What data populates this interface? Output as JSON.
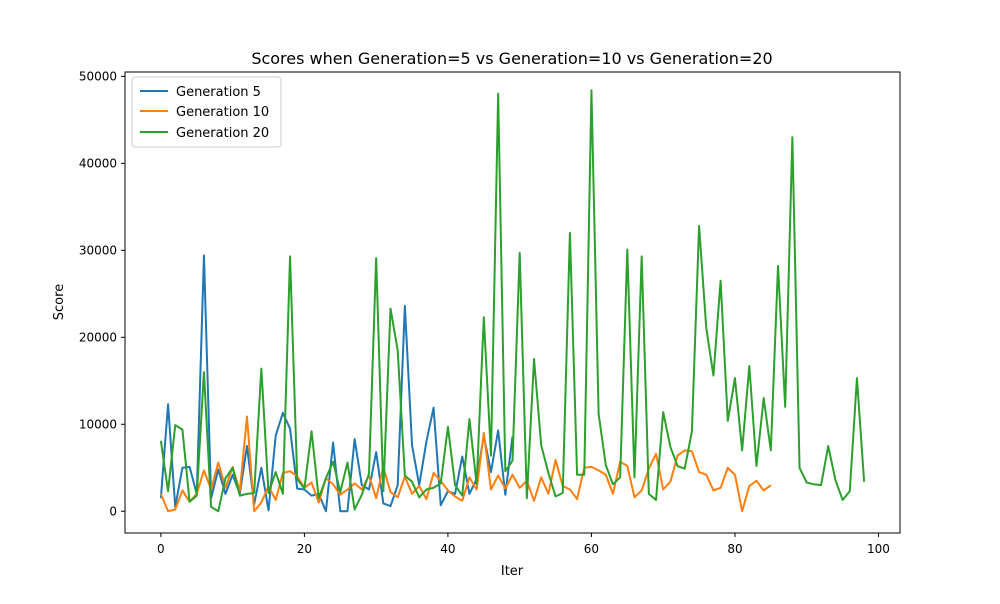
{
  "chart_data": {
    "type": "line",
    "title": "Scores when Generation=5 vs Generation=10 vs Generation=20",
    "xlabel": "Iter",
    "ylabel": "Score",
    "xlim": [
      -5,
      103
    ],
    "ylim": [
      -2500,
      50500
    ],
    "x_ticks": [
      0,
      20,
      40,
      60,
      80,
      100
    ],
    "y_ticks": [
      0,
      10000,
      20000,
      30000,
      40000,
      50000
    ],
    "x_tick_labels": [
      "0",
      "20",
      "40",
      "60",
      "80",
      "100"
    ],
    "y_tick_labels": [
      "0",
      "10000",
      "20000",
      "30000",
      "40000",
      "50000"
    ],
    "grid": false,
    "legend_position": "upper-left",
    "series": [
      {
        "name": "Generation 5",
        "color": "#1f77b4",
        "x": [
          0,
          1,
          2,
          3,
          4,
          5,
          6,
          7,
          8,
          9,
          10,
          11,
          12,
          13,
          14,
          15,
          16,
          17,
          18,
          19,
          20,
          21,
          22,
          23,
          24,
          25,
          26,
          27,
          28,
          29,
          30,
          31,
          32,
          33,
          34,
          35,
          36,
          37,
          38,
          39,
          40,
          41,
          42,
          43,
          44,
          45,
          46,
          47,
          48,
          49
        ],
        "values": [
          1500,
          12300,
          500,
          5000,
          5100,
          2000,
          29400,
          1500,
          4800,
          2000,
          4200,
          2000,
          7500,
          800,
          5000,
          100,
          8700,
          11300,
          9500,
          2600,
          2500,
          1800,
          2000,
          0,
          7900,
          0,
          0,
          8300,
          3000,
          2500,
          6800,
          900,
          600,
          3000,
          23600,
          7600,
          3000,
          8000,
          11900,
          700,
          2300,
          2000,
          6300,
          2000,
          3700,
          8700,
          4500,
          9300,
          1900,
          8600
        ]
      },
      {
        "name": "Generation 10",
        "color": "#ff7f0e",
        "x": [
          0,
          1,
          2,
          3,
          4,
          5,
          6,
          7,
          8,
          9,
          10,
          11,
          12,
          13,
          14,
          15,
          16,
          17,
          18,
          19,
          20,
          21,
          22,
          23,
          24,
          25,
          26,
          27,
          28,
          29,
          30,
          31,
          32,
          33,
          34,
          35,
          36,
          37,
          38,
          39,
          40,
          41,
          42,
          43,
          44,
          45,
          46,
          47,
          48,
          49,
          50,
          51,
          52,
          53,
          54,
          55,
          56,
          57,
          58,
          59,
          60,
          61,
          62,
          63,
          64,
          65,
          66,
          67,
          68,
          69,
          70,
          71,
          72,
          73,
          74,
          75,
          76,
          77,
          78,
          79,
          80,
          81,
          82,
          83,
          84,
          85
        ],
        "values": [
          2000,
          0,
          200,
          2400,
          1100,
          2000,
          4700,
          2500,
          5600,
          2700,
          5100,
          2300,
          10900,
          0,
          1000,
          2900,
          1300,
          4400,
          4600,
          4000,
          2700,
          3300,
          1000,
          3800,
          3100,
          1900,
          2500,
          3200,
          2500,
          4100,
          1500,
          5100,
          2200,
          1600,
          4000,
          2000,
          2900,
          1400,
          4400,
          3500,
          2400,
          1700,
          1200,
          3900,
          2500,
          9000,
          2500,
          4100,
          2600,
          4200,
          2700,
          3500,
          1200,
          3900,
          2000,
          5900,
          2900,
          2500,
          1400,
          5000,
          5100,
          4700,
          4200,
          2000,
          5700,
          5200,
          1600,
          2400,
          4900,
          6600,
          2500,
          3400,
          6400,
          7000,
          6900,
          4500,
          4200,
          2400,
          2700,
          5000,
          4200,
          0,
          2900,
          3500,
          2400,
          3000
        ]
      },
      {
        "name": "Generation 20",
        "color": "#2ca02c",
        "x": [
          0,
          1,
          2,
          3,
          4,
          5,
          6,
          7,
          8,
          9,
          10,
          11,
          12,
          13,
          14,
          15,
          16,
          17,
          18,
          19,
          20,
          21,
          22,
          23,
          24,
          25,
          26,
          27,
          28,
          29,
          30,
          31,
          32,
          33,
          34,
          35,
          36,
          37,
          38,
          39,
          40,
          41,
          42,
          43,
          44,
          45,
          46,
          47,
          48,
          49,
          50,
          51,
          52,
          53,
          54,
          55,
          56,
          57,
          58,
          59,
          60,
          61,
          62,
          63,
          64,
          65,
          66,
          67,
          68,
          69,
          70,
          71,
          72,
          73,
          74,
          75,
          76,
          77,
          78,
          79,
          80,
          81,
          82,
          83,
          84,
          85,
          86,
          87,
          88,
          89,
          90,
          91,
          92,
          93,
          94,
          95,
          96,
          97,
          98
        ],
        "values": [
          8100,
          2300,
          9900,
          9400,
          1100,
          1800,
          16000,
          500,
          0,
          3800,
          5000,
          1800,
          2000,
          2100,
          16400,
          2100,
          4500,
          2000,
          29300,
          3700,
          2600,
          9200,
          1500,
          3800,
          5700,
          2200,
          5600,
          200,
          1900,
          4300,
          29100,
          2300,
          23300,
          18500,
          4100,
          3400,
          1600,
          2500,
          2700,
          3200,
          9700,
          3000,
          1800,
          10600,
          3100,
          22300,
          6400,
          48000,
          4600,
          5800,
          29700,
          1500,
          17500,
          7600,
          4400,
          1700,
          2100,
          32000,
          4200,
          4200,
          48400,
          11200,
          5300,
          3100,
          3900,
          30100,
          3900,
          29300,
          2000,
          1300,
          11400,
          7400,
          5200,
          4900,
          9200,
          32800,
          21100,
          15600,
          26500,
          10400,
          15300,
          7000,
          16700,
          5200,
          13000,
          7000,
          28200,
          12000,
          43000,
          5000,
          3300,
          3100,
          3000,
          7500,
          3600,
          1300,
          2300,
          15300,
          3400
        ]
      }
    ]
  }
}
